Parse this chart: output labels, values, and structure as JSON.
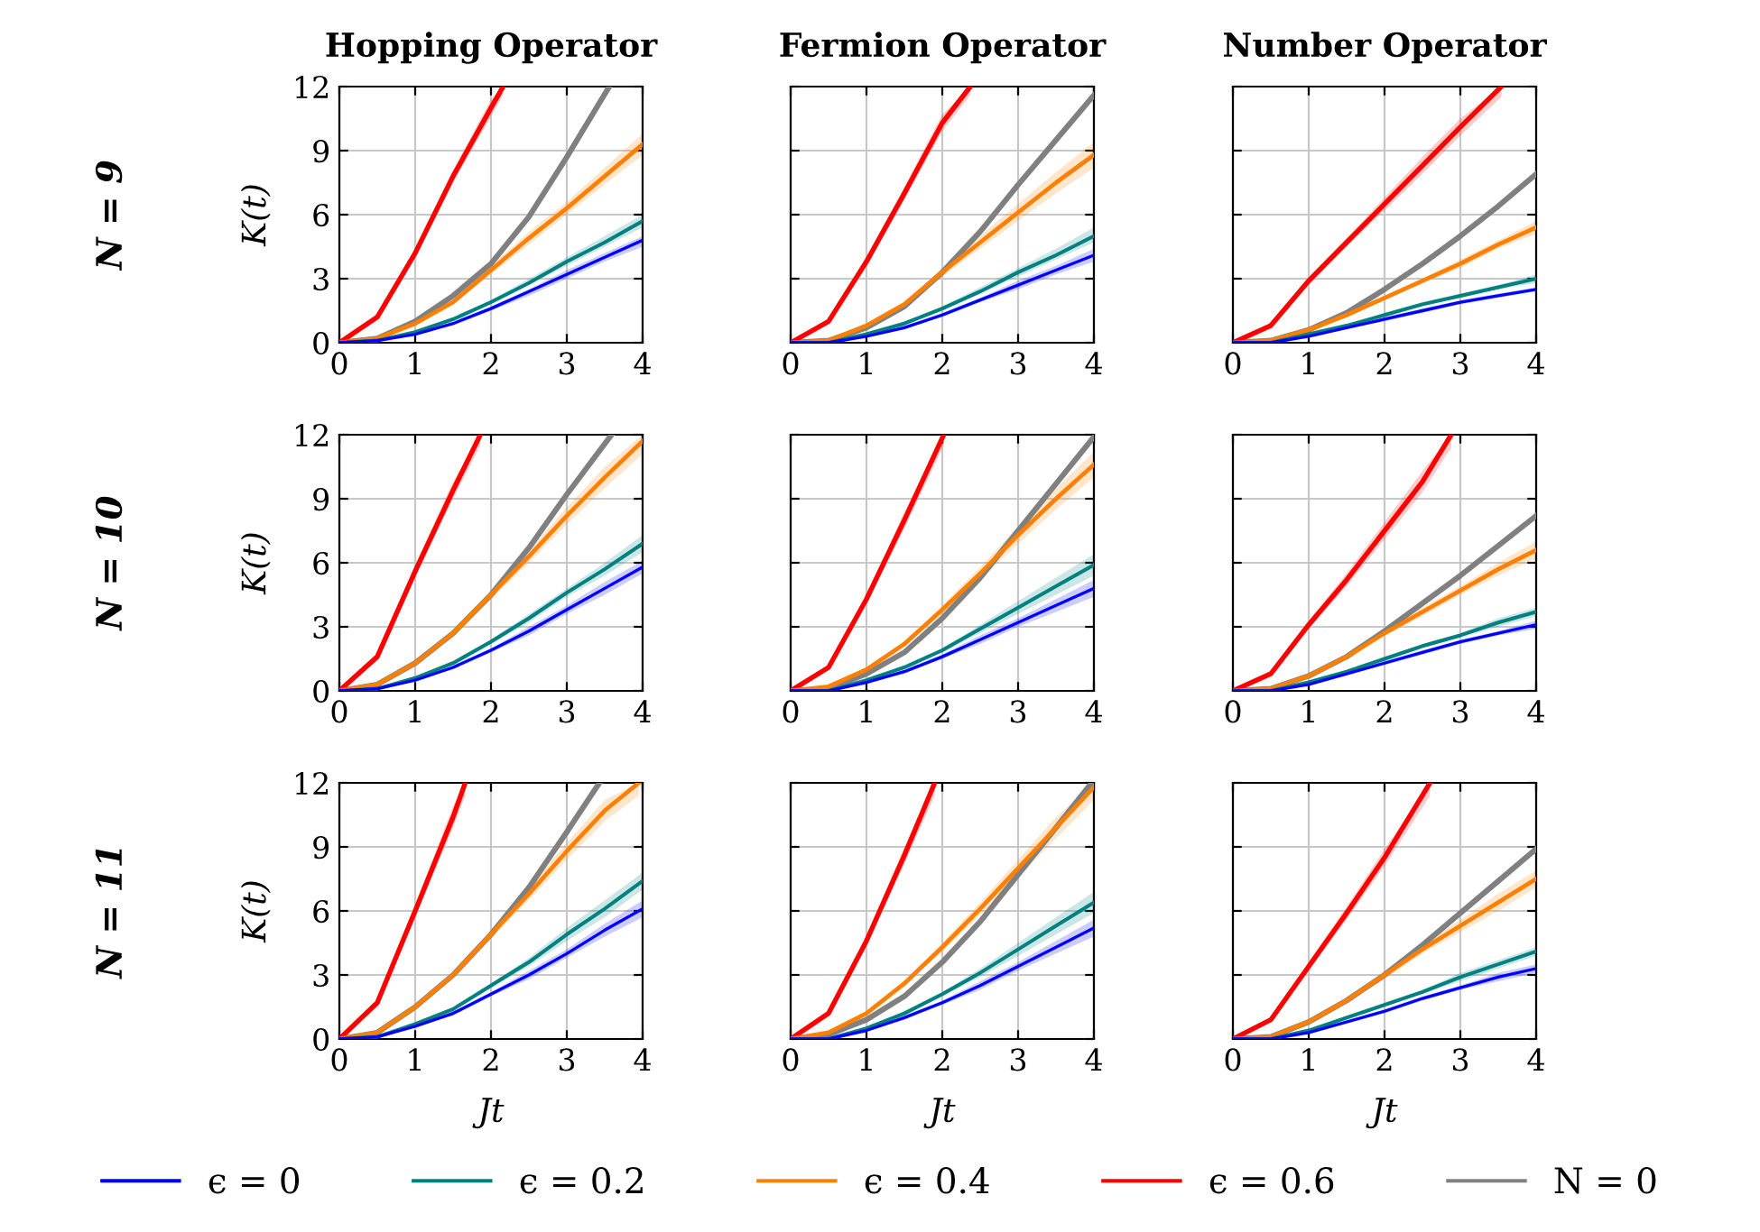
{
  "chart_data": [
    {
      "type": "line",
      "title": "Hopping Operator",
      "ylabel": "K(t)",
      "annotations": [
        "N = 9"
      ],
      "x": [
        0,
        0.5,
        1,
        1.5,
        2,
        2.5,
        3,
        3.5,
        4
      ],
      "xlim": [
        0,
        4
      ],
      "xticks": [
        0,
        1,
        2,
        3,
        4
      ],
      "ylim": [
        0,
        12
      ],
      "yticks": [
        0,
        3,
        6,
        9,
        12
      ],
      "grid": true,
      "legend": "bottom",
      "series": [
        {
          "name": "ϵ = 0",
          "color": "#0000ff",
          "values": [
            0,
            0.1,
            0.4,
            0.9,
            1.6,
            2.4,
            3.2,
            4.0,
            4.8
          ],
          "lower": [
            0,
            0.1,
            0.4,
            0.8,
            1.5,
            2.2,
            3.0,
            3.8,
            4.5
          ],
          "upper": [
            0,
            0.1,
            0.4,
            0.9,
            1.7,
            2.5,
            3.4,
            4.2,
            5.0
          ]
        },
        {
          "name": "ϵ = 0.2",
          "color": "#008080",
          "values": [
            0,
            0.1,
            0.5,
            1.1,
            1.9,
            2.8,
            3.8,
            4.7,
            5.7
          ],
          "lower": [
            0,
            0.1,
            0.5,
            1.0,
            1.8,
            2.7,
            3.6,
            4.5,
            5.4
          ],
          "upper": [
            0,
            0.1,
            0.5,
            1.2,
            2.0,
            3.0,
            4.0,
            5.0,
            6.0
          ]
        },
        {
          "name": "ϵ = 0.4",
          "color": "#ff8000",
          "values": [
            0,
            0.2,
            0.9,
            1.9,
            3.4,
            4.9,
            6.3,
            7.8,
            9.3
          ],
          "lower": [
            0,
            0.2,
            0.9,
            1.8,
            3.2,
            4.6,
            6.0,
            7.4,
            8.8
          ],
          "upper": [
            0,
            0.2,
            0.9,
            2.0,
            3.6,
            5.2,
            6.6,
            8.2,
            9.8
          ]
        },
        {
          "name": "ϵ = 0.6",
          "color": "#ff0000",
          "x": [
            0,
            0.5,
            1,
            1.5,
            2,
            2.16
          ],
          "values": [
            0,
            1.2,
            4.2,
            7.8,
            11.0,
            12
          ],
          "lower": [
            0,
            1.1,
            4.0,
            7.5,
            10.6,
            11.6
          ],
          "upper": [
            0,
            1.3,
            4.4,
            8.1,
            11.4,
            12
          ]
        },
        {
          "name": "N = 0",
          "color": "#808080",
          "x": [
            0,
            0.5,
            1,
            1.5,
            2,
            2.5,
            3,
            3.56
          ],
          "values": [
            0,
            0.2,
            1.0,
            2.2,
            3.7,
            5.9,
            8.7,
            12
          ]
        }
      ]
    },
    {
      "type": "line",
      "title": "Fermion Operator",
      "tick_labels": "x",
      "x": [
        0,
        0.5,
        1,
        1.5,
        2,
        2.5,
        3,
        3.5,
        4
      ],
      "xlim": [
        0,
        4
      ],
      "xticks": [
        0,
        1,
        2,
        3,
        4
      ],
      "ylim": [
        0,
        12
      ],
      "yticks": [
        0,
        3,
        6,
        9,
        12
      ],
      "grid": true,
      "series": [
        {
          "color": "#0000ff",
          "values": [
            0,
            0,
            0.3,
            0.7,
            1.3,
            2.0,
            2.7,
            3.4,
            4.1
          ],
          "lower": [
            0,
            0,
            0.3,
            0.7,
            1.2,
            1.9,
            2.5,
            3.2,
            3.8
          ],
          "upper": [
            0,
            0,
            0.3,
            0.8,
            1.4,
            2.1,
            2.9,
            3.6,
            4.4
          ]
        },
        {
          "color": "#008080",
          "values": [
            0,
            0,
            0.4,
            0.9,
            1.6,
            2.4,
            3.3,
            4.1,
            5.0
          ],
          "lower": [
            0,
            0,
            0.4,
            0.8,
            1.5,
            2.3,
            3.1,
            3.9,
            4.7
          ],
          "upper": [
            0,
            0,
            0.4,
            1.0,
            1.7,
            2.6,
            3.5,
            4.4,
            5.4
          ]
        },
        {
          "color": "#ff8000",
          "values": [
            0,
            0.1,
            0.8,
            1.8,
            3.3,
            4.7,
            6.1,
            7.5,
            8.8
          ],
          "lower": [
            0,
            0.1,
            0.8,
            1.7,
            3.1,
            4.4,
            5.7,
            7.0,
            8.2
          ],
          "upper": [
            0,
            0.1,
            0.8,
            1.9,
            3.5,
            5.0,
            6.5,
            8.0,
            9.4
          ]
        },
        {
          "color": "#ff0000",
          "x": [
            0,
            0.5,
            1,
            1.5,
            2,
            2.37
          ],
          "values": [
            0,
            1.0,
            3.8,
            7.0,
            10.3,
            12
          ],
          "lower": [
            0,
            0.9,
            3.6,
            6.7,
            9.9,
            11.6
          ],
          "upper": [
            0,
            1.1,
            4.0,
            7.3,
            10.7,
            12
          ]
        },
        {
          "color": "#808080",
          "values": [
            0,
            0.1,
            0.7,
            1.7,
            3.3,
            5.2,
            7.4,
            9.5,
            11.6
          ]
        }
      ]
    },
    {
      "type": "line",
      "title": "Number Operator",
      "tick_labels": "x",
      "x": [
        0,
        0.5,
        1,
        1.5,
        2,
        2.5,
        3,
        3.5,
        4
      ],
      "xlim": [
        0,
        4
      ],
      "xticks": [
        0,
        1,
        2,
        3,
        4
      ],
      "ylim": [
        0,
        12
      ],
      "yticks": [
        0,
        3,
        6,
        9,
        12
      ],
      "grid": true,
      "series": [
        {
          "color": "#0000ff",
          "values": [
            0,
            0,
            0.3,
            0.7,
            1.1,
            1.5,
            1.9,
            2.2,
            2.5
          ],
          "lower": [
            0,
            0,
            0.3,
            0.7,
            1.0,
            1.4,
            1.8,
            2.1,
            2.4
          ],
          "upper": [
            0,
            0,
            0.3,
            0.7,
            1.2,
            1.6,
            2.0,
            2.3,
            2.6
          ]
        },
        {
          "color": "#008080",
          "values": [
            0,
            0,
            0.4,
            0.8,
            1.3,
            1.8,
            2.2,
            2.6,
            3.0
          ],
          "lower": [
            0,
            0,
            0.4,
            0.8,
            1.2,
            1.7,
            2.1,
            2.5,
            2.8
          ],
          "upper": [
            0,
            0,
            0.4,
            0.8,
            1.4,
            1.9,
            2.3,
            2.7,
            3.2
          ]
        },
        {
          "color": "#ff8000",
          "values": [
            0,
            0.1,
            0.6,
            1.3,
            2.1,
            2.9,
            3.7,
            4.6,
            5.4
          ],
          "lower": [
            0,
            0.1,
            0.6,
            1.2,
            2.0,
            2.8,
            3.5,
            4.4,
            5.1
          ],
          "upper": [
            0,
            0.1,
            0.6,
            1.4,
            2.2,
            3.0,
            3.9,
            4.8,
            5.7
          ]
        },
        {
          "color": "#ff0000",
          "x": [
            0,
            0.5,
            1,
            1.5,
            2,
            2.5,
            3,
            3.54
          ],
          "values": [
            0,
            0.8,
            2.9,
            4.7,
            6.5,
            8.3,
            10.1,
            12
          ],
          "lower": [
            0,
            0.7,
            2.7,
            4.5,
            6.2,
            7.9,
            9.7,
            11.5
          ],
          "upper": [
            0,
            0.9,
            3.1,
            4.9,
            6.8,
            8.7,
            10.5,
            12
          ]
        },
        {
          "color": "#808080",
          "values": [
            0,
            0.1,
            0.6,
            1.4,
            2.5,
            3.7,
            5.0,
            6.4,
            7.9
          ]
        }
      ]
    },
    {
      "type": "line",
      "ylabel": "K(t)",
      "annotations": [
        "N = 10"
      ],
      "x": [
        0,
        0.5,
        1,
        1.5,
        2,
        2.5,
        3,
        3.5,
        4
      ],
      "xlim": [
        0,
        4
      ],
      "xticks": [
        0,
        1,
        2,
        3,
        4
      ],
      "ylim": [
        0,
        12
      ],
      "yticks": [
        0,
        3,
        6,
        9,
        12
      ],
      "grid": true,
      "series": [
        {
          "color": "#0000ff",
          "values": [
            0,
            0.1,
            0.5,
            1.1,
            1.9,
            2.8,
            3.8,
            4.8,
            5.8
          ],
          "lower": [
            0,
            0.1,
            0.5,
            1.0,
            1.8,
            2.6,
            3.6,
            4.5,
            5.5
          ],
          "upper": [
            0,
            0.1,
            0.5,
            1.2,
            2.0,
            3.0,
            4.0,
            5.1,
            6.1
          ]
        },
        {
          "color": "#008080",
          "values": [
            0,
            0.1,
            0.6,
            1.3,
            2.3,
            3.4,
            4.6,
            5.7,
            6.9
          ],
          "lower": [
            0,
            0.1,
            0.6,
            1.2,
            2.2,
            3.2,
            4.4,
            5.4,
            6.5
          ],
          "upper": [
            0,
            0.1,
            0.6,
            1.4,
            2.4,
            3.6,
            4.8,
            6.0,
            7.3
          ]
        },
        {
          "color": "#ff8000",
          "values": [
            0,
            0.3,
            1.3,
            2.7,
            4.5,
            6.3,
            8.2,
            10.0,
            11.7
          ],
          "lower": [
            0,
            0.3,
            1.3,
            2.6,
            4.3,
            6.0,
            7.8,
            9.5,
            11.1
          ],
          "upper": [
            0,
            0.3,
            1.3,
            2.8,
            4.7,
            6.6,
            8.6,
            10.5,
            12
          ]
        },
        {
          "color": "#ff0000",
          "x": [
            0,
            0.5,
            1,
            1.5,
            1.86
          ],
          "values": [
            0,
            1.6,
            5.6,
            9.4,
            12
          ],
          "lower": [
            0,
            1.5,
            5.3,
            9.0,
            11.5
          ],
          "upper": [
            0,
            1.7,
            5.9,
            9.8,
            12
          ]
        },
        {
          "color": "#808080",
          "x": [
            0,
            0.5,
            1,
            1.5,
            2,
            2.5,
            3,
            3.59
          ],
          "values": [
            0,
            0.3,
            1.3,
            2.7,
            4.5,
            6.7,
            9.2,
            12
          ]
        }
      ]
    },
    {
      "type": "line",
      "tick_labels": "x",
      "x": [
        0,
        0.5,
        1,
        1.5,
        2,
        2.5,
        3,
        3.5,
        4
      ],
      "xlim": [
        0,
        4
      ],
      "xticks": [
        0,
        1,
        2,
        3,
        4
      ],
      "ylim": [
        0,
        12
      ],
      "yticks": [
        0,
        3,
        6,
        9,
        12
      ],
      "grid": true,
      "series": [
        {
          "color": "#0000ff",
          "values": [
            0,
            0,
            0.4,
            0.9,
            1.6,
            2.4,
            3.2,
            4.0,
            4.8
          ],
          "lower": [
            0,
            0,
            0.4,
            0.8,
            1.5,
            2.2,
            3.0,
            3.7,
            4.4
          ],
          "upper": [
            0,
            0,
            0.4,
            1.0,
            1.7,
            2.6,
            3.4,
            4.3,
            5.2
          ]
        },
        {
          "color": "#008080",
          "values": [
            0,
            0,
            0.5,
            1.1,
            1.9,
            2.9,
            3.9,
            4.9,
            5.9
          ],
          "lower": [
            0,
            0,
            0.5,
            1.0,
            1.8,
            2.7,
            3.6,
            4.5,
            5.4
          ],
          "upper": [
            0,
            0,
            0.5,
            1.2,
            2.0,
            3.1,
            4.2,
            5.3,
            6.4
          ]
        },
        {
          "color": "#ff8000",
          "values": [
            0,
            0.2,
            1.0,
            2.2,
            3.8,
            5.5,
            7.3,
            9.0,
            10.6
          ],
          "lower": [
            0,
            0.2,
            1.0,
            2.1,
            3.6,
            5.2,
            6.9,
            8.5,
            10.0
          ],
          "upper": [
            0,
            0.2,
            1.0,
            2.3,
            4.0,
            5.8,
            7.7,
            9.5,
            11.2
          ]
        },
        {
          "color": "#ff0000",
          "x": [
            0,
            0.5,
            1,
            1.5,
            2.02
          ],
          "values": [
            0,
            1.1,
            4.3,
            8.0,
            12
          ],
          "lower": [
            0,
            1.0,
            4.1,
            7.6,
            11.5
          ],
          "upper": [
            0,
            1.2,
            4.5,
            8.4,
            12
          ]
        },
        {
          "color": "#808080",
          "values": [
            0,
            0.1,
            0.8,
            1.8,
            3.4,
            5.3,
            7.5,
            9.7,
            11.9
          ]
        }
      ]
    },
    {
      "type": "line",
      "tick_labels": "x",
      "x": [
        0,
        0.5,
        1,
        1.5,
        2,
        2.5,
        3,
        3.5,
        4
      ],
      "xlim": [
        0,
        4
      ],
      "xticks": [
        0,
        1,
        2,
        3,
        4
      ],
      "ylim": [
        0,
        12
      ],
      "yticks": [
        0,
        3,
        6,
        9,
        12
      ],
      "grid": true,
      "series": [
        {
          "color": "#0000ff",
          "values": [
            0,
            0,
            0.3,
            0.8,
            1.3,
            1.8,
            2.3,
            2.7,
            3.1
          ],
          "lower": [
            0,
            0,
            0.3,
            0.8,
            1.2,
            1.7,
            2.2,
            2.6,
            2.9
          ],
          "upper": [
            0,
            0,
            0.3,
            0.8,
            1.4,
            1.9,
            2.4,
            2.8,
            3.3
          ]
        },
        {
          "color": "#008080",
          "values": [
            0,
            0,
            0.4,
            0.9,
            1.5,
            2.1,
            2.6,
            3.2,
            3.7
          ],
          "lower": [
            0,
            0,
            0.4,
            0.9,
            1.4,
            2.0,
            2.5,
            3.0,
            3.5
          ],
          "upper": [
            0,
            0,
            0.4,
            0.9,
            1.6,
            2.2,
            2.7,
            3.4,
            3.9
          ]
        },
        {
          "color": "#ff8000",
          "values": [
            0,
            0.1,
            0.7,
            1.6,
            2.7,
            3.7,
            4.7,
            5.7,
            6.6
          ],
          "lower": [
            0,
            0.1,
            0.7,
            1.5,
            2.6,
            3.5,
            4.5,
            5.4,
            6.2
          ],
          "upper": [
            0,
            0.1,
            0.7,
            1.7,
            2.8,
            3.9,
            4.9,
            6.0,
            7.0
          ]
        },
        {
          "color": "#ff0000",
          "x": [
            0,
            0.5,
            1,
            1.5,
            2,
            2.5,
            2.88
          ],
          "values": [
            0,
            0.8,
            3.1,
            5.2,
            7.5,
            9.8,
            12
          ],
          "lower": [
            0,
            0.7,
            2.9,
            4.9,
            7.1,
            9.3,
            11.4
          ],
          "upper": [
            0,
            0.9,
            3.3,
            5.5,
            7.9,
            10.3,
            12
          ]
        },
        {
          "color": "#808080",
          "values": [
            0,
            0.1,
            0.7,
            1.6,
            2.8,
            4.1,
            5.4,
            6.8,
            8.2
          ]
        }
      ]
    },
    {
      "type": "line",
      "ylabel": "K(t)",
      "xlabel": "Jt",
      "annotations": [
        "N = 11"
      ],
      "x": [
        0,
        0.5,
        1,
        1.5,
        2,
        2.5,
        3,
        3.5,
        4
      ],
      "xlim": [
        0,
        4
      ],
      "xticks": [
        0,
        1,
        2,
        3,
        4
      ],
      "ylim": [
        0,
        12
      ],
      "yticks": [
        0,
        3,
        6,
        9,
        12
      ],
      "grid": true,
      "series": [
        {
          "color": "#0000ff",
          "values": [
            0,
            0.1,
            0.6,
            1.2,
            2.1,
            3.0,
            4.0,
            5.1,
            6.1
          ],
          "lower": [
            0,
            0.1,
            0.6,
            1.1,
            2.0,
            2.8,
            3.8,
            4.8,
            5.7
          ],
          "upper": [
            0,
            0.1,
            0.6,
            1.3,
            2.2,
            3.2,
            4.2,
            5.4,
            6.5
          ]
        },
        {
          "color": "#008080",
          "values": [
            0,
            0.1,
            0.7,
            1.4,
            2.5,
            3.6,
            4.9,
            6.1,
            7.4
          ],
          "lower": [
            0,
            0.1,
            0.7,
            1.3,
            2.4,
            3.4,
            4.6,
            5.7,
            7.0
          ],
          "upper": [
            0,
            0.1,
            0.7,
            1.5,
            2.6,
            3.8,
            5.2,
            6.5,
            7.8
          ]
        },
        {
          "color": "#ff8000",
          "x": [
            0,
            0.5,
            1,
            1.5,
            2,
            2.5,
            3,
            3.5,
            3.95
          ],
          "values": [
            0,
            0.3,
            1.5,
            3.0,
            4.9,
            6.8,
            8.8,
            10.7,
            12
          ],
          "lower": [
            0,
            0.3,
            1.5,
            2.9,
            4.7,
            6.5,
            8.4,
            10.2,
            11.4
          ],
          "upper": [
            0,
            0.3,
            1.5,
            3.1,
            5.1,
            7.1,
            9.2,
            11.2,
            12
          ]
        },
        {
          "color": "#ff0000",
          "x": [
            0,
            0.5,
            1,
            1.5,
            1.66
          ],
          "values": [
            0,
            1.7,
            6.0,
            10.4,
            12
          ],
          "lower": [
            0,
            1.6,
            5.7,
            9.9,
            11.4
          ],
          "upper": [
            0,
            1.8,
            6.3,
            10.9,
            12
          ]
        },
        {
          "color": "#808080",
          "x": [
            0,
            0.5,
            1,
            1.5,
            2,
            2.5,
            3,
            3.43
          ],
          "values": [
            0,
            0.3,
            1.5,
            3.0,
            4.9,
            7.1,
            9.7,
            12
          ]
        }
      ]
    },
    {
      "type": "line",
      "xlabel": "Jt",
      "tick_labels": "x",
      "x": [
        0,
        0.5,
        1,
        1.5,
        2,
        2.5,
        3,
        3.5,
        4
      ],
      "xlim": [
        0,
        4
      ],
      "xticks": [
        0,
        1,
        2,
        3,
        4
      ],
      "ylim": [
        0,
        12
      ],
      "yticks": [
        0,
        3,
        6,
        9,
        12
      ],
      "grid": true,
      "series": [
        {
          "color": "#0000ff",
          "values": [
            0,
            0,
            0.4,
            1.0,
            1.7,
            2.5,
            3.4,
            4.3,
            5.2
          ],
          "lower": [
            0,
            0,
            0.4,
            0.9,
            1.6,
            2.3,
            3.2,
            4.0,
            4.8
          ],
          "upper": [
            0,
            0,
            0.4,
            1.1,
            1.8,
            2.7,
            3.6,
            4.6,
            5.6
          ]
        },
        {
          "color": "#008080",
          "values": [
            0,
            0,
            0.5,
            1.2,
            2.1,
            3.1,
            4.2,
            5.3,
            6.4
          ],
          "lower": [
            0,
            0,
            0.5,
            1.1,
            2.0,
            2.9,
            3.9,
            4.9,
            5.9
          ],
          "upper": [
            0,
            0,
            0.5,
            1.3,
            2.2,
            3.3,
            4.5,
            5.7,
            6.9
          ]
        },
        {
          "color": "#ff8000",
          "values": [
            0,
            0.3,
            1.2,
            2.6,
            4.3,
            6.1,
            8.0,
            9.9,
            11.8
          ],
          "lower": [
            0,
            0.3,
            1.2,
            2.5,
            4.1,
            5.8,
            7.6,
            9.4,
            11.2
          ],
          "upper": [
            0,
            0.3,
            1.2,
            2.7,
            4.5,
            6.4,
            8.4,
            10.4,
            12
          ]
        },
        {
          "color": "#ff0000",
          "x": [
            0,
            0.5,
            1,
            1.5,
            1.9
          ],
          "values": [
            0,
            1.2,
            4.6,
            8.6,
            12
          ],
          "lower": [
            0,
            1.1,
            4.4,
            8.2,
            11.4
          ],
          "upper": [
            0,
            1.3,
            4.8,
            9.0,
            12
          ]
        },
        {
          "color": "#808080",
          "x": [
            0,
            0.5,
            1,
            1.5,
            2,
            2.5,
            3,
            3.5,
            3.97
          ],
          "values": [
            0,
            0.2,
            0.9,
            2.0,
            3.6,
            5.5,
            7.7,
            9.9,
            12
          ]
        }
      ]
    },
    {
      "type": "line",
      "xlabel": "Jt",
      "tick_labels": "x",
      "x": [
        0,
        0.5,
        1,
        1.5,
        2,
        2.5,
        3,
        3.5,
        4
      ],
      "xlim": [
        0,
        4
      ],
      "xticks": [
        0,
        1,
        2,
        3,
        4
      ],
      "ylim": [
        0,
        12
      ],
      "yticks": [
        0,
        3,
        6,
        9,
        12
      ],
      "grid": true,
      "series": [
        {
          "color": "#0000ff",
          "values": [
            0,
            0,
            0.3,
            0.8,
            1.3,
            1.9,
            2.4,
            2.9,
            3.3
          ],
          "lower": [
            0,
            0,
            0.3,
            0.8,
            1.2,
            1.8,
            2.3,
            2.7,
            3.1
          ],
          "upper": [
            0,
            0,
            0.3,
            0.8,
            1.4,
            2.0,
            2.5,
            3.1,
            3.5
          ]
        },
        {
          "color": "#008080",
          "values": [
            0,
            0,
            0.4,
            1.0,
            1.6,
            2.2,
            2.9,
            3.5,
            4.1
          ],
          "lower": [
            0,
            0,
            0.4,
            0.9,
            1.5,
            2.1,
            2.7,
            3.3,
            3.9
          ],
          "upper": [
            0,
            0,
            0.4,
            1.1,
            1.7,
            2.3,
            3.1,
            3.7,
            4.3
          ]
        },
        {
          "color": "#ff8000",
          "values": [
            0,
            0.1,
            0.8,
            1.8,
            3.0,
            4.2,
            5.3,
            6.4,
            7.5
          ],
          "lower": [
            0,
            0.1,
            0.8,
            1.7,
            2.8,
            4.0,
            5.0,
            6.0,
            7.1
          ],
          "upper": [
            0,
            0.1,
            0.8,
            1.9,
            3.2,
            4.4,
            5.6,
            6.8,
            7.9
          ]
        },
        {
          "color": "#ff0000",
          "x": [
            0,
            0.5,
            1,
            1.5,
            2,
            2.6
          ],
          "values": [
            0,
            0.9,
            3.4,
            5.9,
            8.5,
            12
          ],
          "lower": [
            0,
            0.8,
            3.2,
            5.6,
            8.1,
            11.4
          ],
          "upper": [
            0,
            1.0,
            3.6,
            6.2,
            8.9,
            12
          ]
        },
        {
          "color": "#808080",
          "values": [
            0,
            0.1,
            0.8,
            1.8,
            3.0,
            4.4,
            5.9,
            7.4,
            8.9
          ]
        }
      ]
    }
  ]
}
